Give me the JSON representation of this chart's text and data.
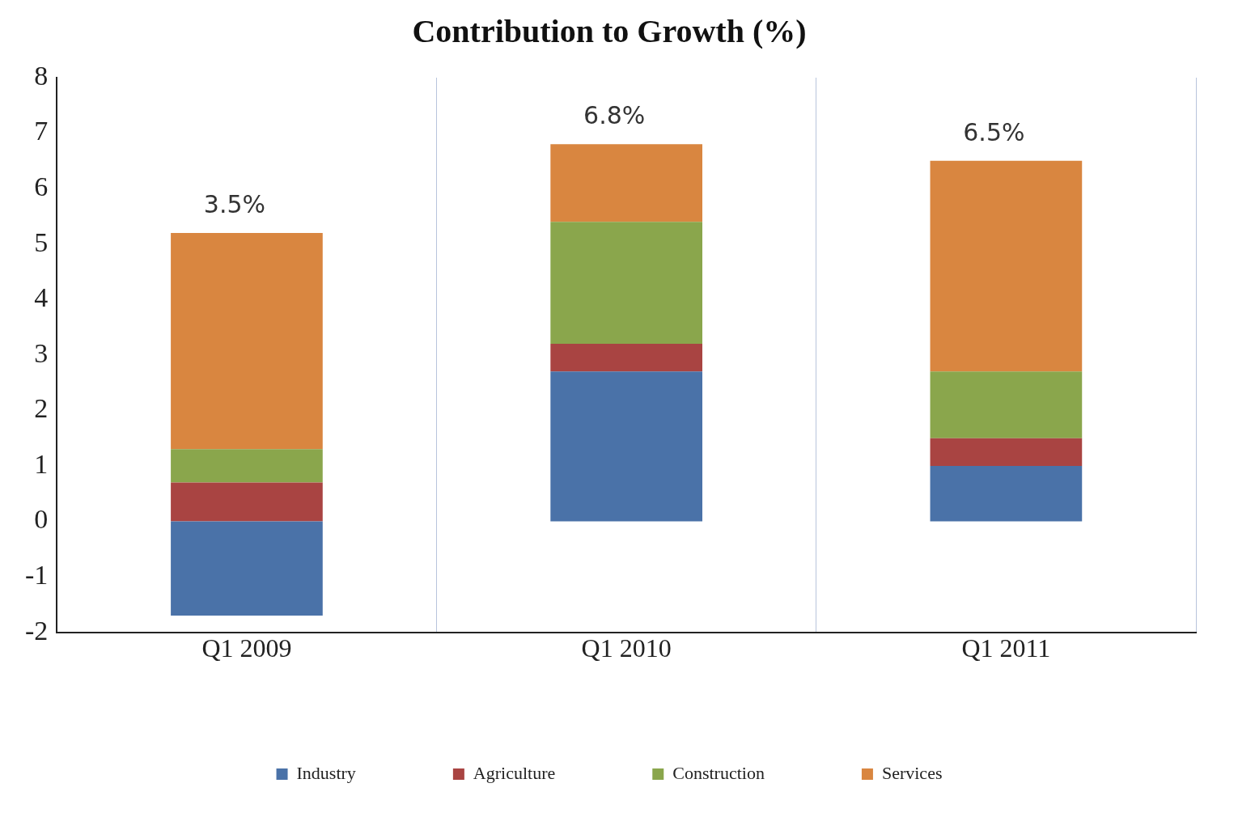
{
  "chart_data": {
    "type": "bar",
    "title": "Contribution to Growth (%)",
    "categories": [
      "Q1 2009",
      "Q1 2010",
      "Q1 2011"
    ],
    "stacked": true,
    "series": [
      {
        "name": "Industry",
        "color": "#4a72a8",
        "values": [
          -1.7,
          2.7,
          1.0
        ]
      },
      {
        "name": "Agriculture",
        "color": "#a94442",
        "values": [
          0.7,
          0.5,
          0.5
        ]
      },
      {
        "name": "Construction",
        "color": "#8aa64c",
        "values": [
          0.6,
          2.2,
          1.2
        ]
      },
      {
        "name": "Services",
        "color": "#d98640",
        "values": [
          3.9,
          1.4,
          3.8
        ]
      }
    ],
    "ylim": [
      -2,
      8
    ],
    "yticks": [
      -2,
      -1,
      0,
      1,
      2,
      3,
      4,
      5,
      6,
      7,
      8
    ],
    "grid": "x",
    "legend": "bottom",
    "totals": [
      "3.5%",
      "6.8%",
      "6.5%"
    ]
  }
}
